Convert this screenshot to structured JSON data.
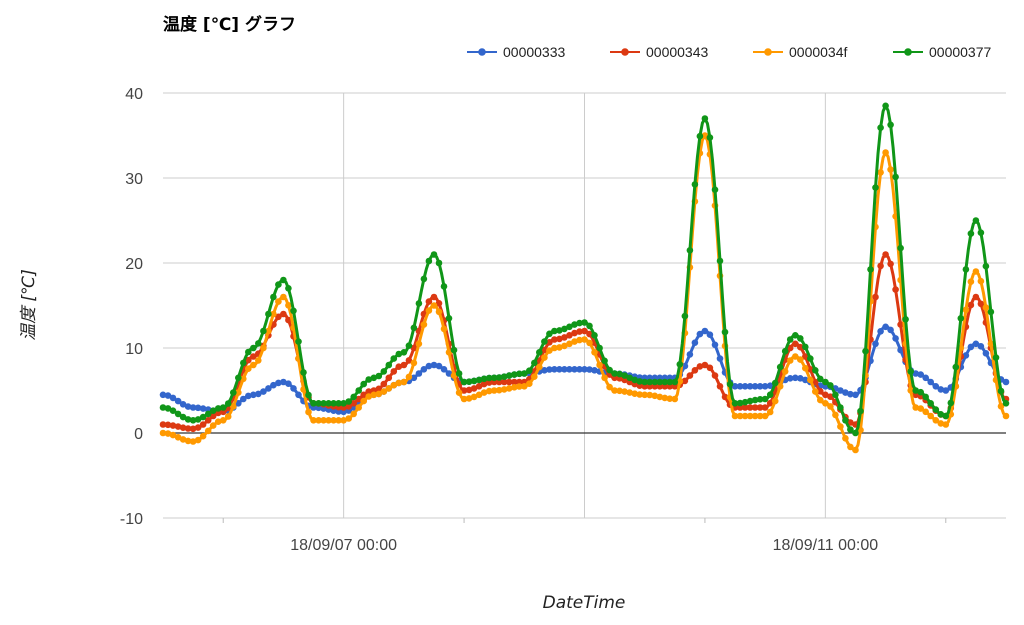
{
  "chart_data": {
    "type": "line",
    "title": "温度 [℃] グラフ",
    "xlabel": "DateTime",
    "ylabel": "温度 [℃]",
    "ylim": [
      -10,
      40
    ],
    "yticks": [
      "40",
      "30",
      "20",
      "10",
      "0",
      "-10"
    ],
    "xlim": [
      "18/09/05 12:00",
      "18/09/12 12:00"
    ],
    "xticks": [
      "18/09/07 00:00",
      "18/09/11 00:00"
    ],
    "legend_position": "top-right",
    "grid": true,
    "x": [
      "18/09/05 12:00",
      "18/09/05 18:00",
      "18/09/06 00:00",
      "18/09/06 06:00",
      "18/09/06 12:00",
      "18/09/06 18:00",
      "18/09/07 00:00",
      "18/09/07 06:00",
      "18/09/07 12:00",
      "18/09/07 18:00",
      "18/09/08 00:00",
      "18/09/08 06:00",
      "18/09/08 12:00",
      "18/09/08 18:00",
      "18/09/09 00:00",
      "18/09/09 06:00",
      "18/09/09 12:00",
      "18/09/09 18:00",
      "18/09/10 00:00",
      "18/09/10 06:00",
      "18/09/10 12:00",
      "18/09/10 18:00",
      "18/09/11 00:00",
      "18/09/11 06:00",
      "18/09/11 12:00",
      "18/09/11 18:00",
      "18/09/12 00:00",
      "18/09/12 06:00",
      "18/09/12 12:00"
    ],
    "series": [
      {
        "name": "00000333",
        "color": "#3366cc",
        "values": [
          4.5,
          3.0,
          2.5,
          4.5,
          6.0,
          3.0,
          2.5,
          4.5,
          6.0,
          8.0,
          6.0,
          6.5,
          7.0,
          7.5,
          7.5,
          7.0,
          6.5,
          6.5,
          12.0,
          5.5,
          5.5,
          6.5,
          5.5,
          4.5,
          12.5,
          7.0,
          5.0,
          10.5,
          6.0
        ]
      },
      {
        "name": "00000343",
        "color": "#dc3912",
        "values": [
          1.0,
          0.5,
          2.5,
          9.0,
          14.0,
          3.5,
          3.0,
          5.0,
          8.0,
          16.0,
          5.0,
          6.0,
          6.0,
          11.0,
          12.0,
          6.5,
          5.5,
          5.5,
          8.0,
          3.0,
          3.0,
          10.5,
          4.5,
          1.0,
          21.0,
          4.5,
          2.0,
          16.0,
          4.0
        ]
      },
      {
        "name": "0000034f",
        "color": "#ff9900",
        "values": [
          0.0,
          -1.0,
          1.5,
          8.0,
          16.0,
          1.5,
          1.5,
          4.5,
          6.0,
          15.0,
          4.0,
          5.0,
          5.5,
          10.0,
          11.0,
          5.0,
          4.5,
          4.0,
          35.0,
          2.0,
          2.0,
          9.0,
          3.5,
          -2.0,
          33.0,
          3.0,
          1.0,
          19.0,
          2.0
        ]
      },
      {
        "name": "00000377",
        "color": "#109618",
        "values": [
          3.0,
          1.5,
          3.0,
          10.0,
          18.0,
          3.5,
          3.5,
          6.5,
          9.5,
          21.0,
          6.0,
          6.5,
          7.0,
          12.0,
          13.0,
          7.0,
          6.0,
          6.0,
          37.0,
          3.5,
          4.0,
          11.5,
          6.0,
          0.0,
          38.5,
          5.0,
          2.0,
          25.0,
          3.5
        ]
      }
    ]
  }
}
